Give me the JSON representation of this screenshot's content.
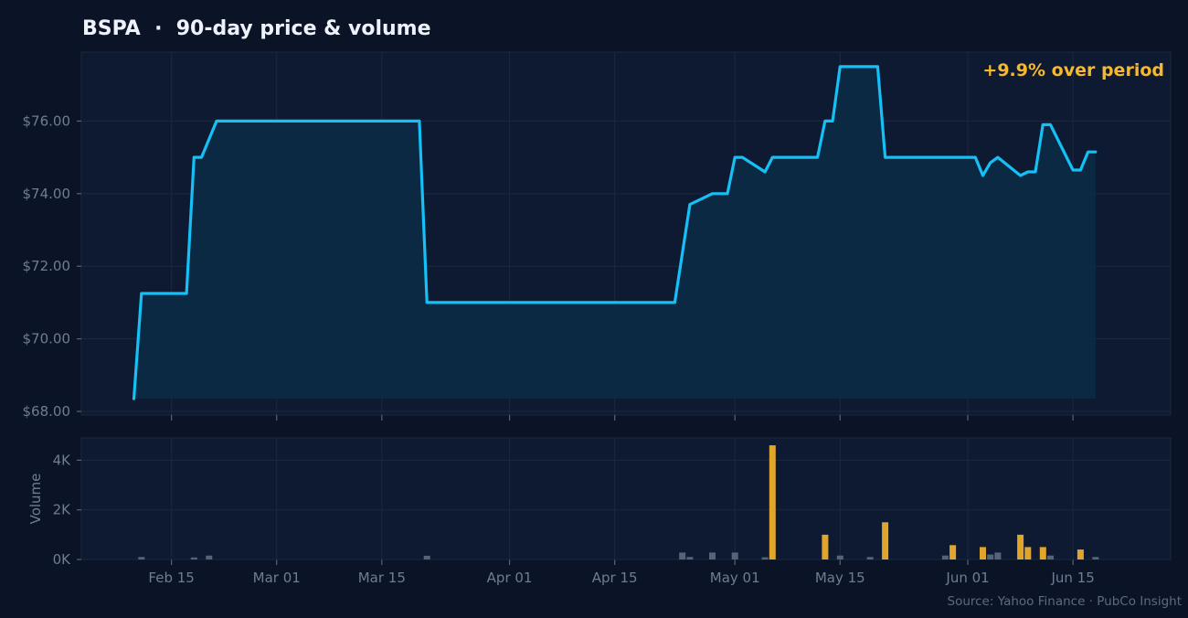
{
  "colors": {
    "background": "#0b1426",
    "panel": "#0e1a31",
    "grid": "#1b2940",
    "price_line": "#14c0f5",
    "price_fill": "#0c2a44",
    "volume_highlight": "#e0a52a",
    "volume_normal": "#56647a"
  },
  "chart_data": [
    {
      "type": "line",
      "title": "BSPA  ·  90-day price & volume",
      "annotation": "+9.9% over period",
      "source": "Source: Yahoo Finance · PubCo Insight",
      "x_ticks": [
        {
          "date": "2025-02-15",
          "label": "Feb 15"
        },
        {
          "date": "2025-03-01",
          "label": "Mar 01"
        },
        {
          "date": "2025-03-15",
          "label": "Mar 15"
        },
        {
          "date": "2025-04-01",
          "label": "Apr 01"
        },
        {
          "date": "2025-04-15",
          "label": "Apr 15"
        },
        {
          "date": "2025-05-01",
          "label": "May 01"
        },
        {
          "date": "2025-05-15",
          "label": "May 15"
        },
        {
          "date": "2025-06-01",
          "label": "Jun 01"
        },
        {
          "date": "2025-06-15",
          "label": "Jun 15"
        }
      ],
      "xlim": [
        "2025-02-03",
        "2025-06-28"
      ],
      "ylim": [
        67.9,
        77.9
      ],
      "y_ticks": [
        {
          "value": 68,
          "label": "$68.00"
        },
        {
          "value": 70,
          "label": "$70.00"
        },
        {
          "value": 72,
          "label": "$72.00"
        },
        {
          "value": 74,
          "label": "$74.00"
        },
        {
          "value": 76,
          "label": "$76.00"
        }
      ],
      "grid": true,
      "fill_under_line": true,
      "series": [
        {
          "points": [
            [
              "2025-02-10",
              68.35
            ],
            [
              "2025-02-11",
              71.25
            ],
            [
              "2025-02-17",
              71.25
            ],
            [
              "2025-02-18",
              75.0
            ],
            [
              "2025-02-19",
              75.0
            ],
            [
              "2025-02-21",
              76.0
            ],
            [
              "2025-03-20",
              76.0
            ],
            [
              "2025-03-21",
              71.0
            ],
            [
              "2025-04-23",
              71.0
            ],
            [
              "2025-04-25",
              73.7
            ],
            [
              "2025-04-28",
              74.0
            ],
            [
              "2025-04-30",
              74.0
            ],
            [
              "2025-05-01",
              75.0
            ],
            [
              "2025-05-02",
              75.0
            ],
            [
              "2025-05-05",
              74.6
            ],
            [
              "2025-05-06",
              75.0
            ],
            [
              "2025-05-12",
              75.0
            ],
            [
              "2025-05-13",
              76.0
            ],
            [
              "2025-05-14",
              76.0
            ],
            [
              "2025-05-15",
              77.5
            ],
            [
              "2025-05-20",
              77.5
            ],
            [
              "2025-05-21",
              75.0
            ],
            [
              "2025-06-02",
              75.0
            ],
            [
              "2025-06-03",
              74.5
            ],
            [
              "2025-06-04",
              74.85
            ],
            [
              "2025-06-05",
              75.0
            ],
            [
              "2025-06-08",
              74.5
            ],
            [
              "2025-06-09",
              74.6
            ],
            [
              "2025-06-10",
              74.6
            ],
            [
              "2025-06-11",
              75.9
            ],
            [
              "2025-06-12",
              75.9
            ],
            [
              "2025-06-15",
              74.65
            ],
            [
              "2025-06-16",
              74.65
            ],
            [
              "2025-06-17",
              75.15
            ],
            [
              "2025-06-18",
              75.15
            ]
          ]
        }
      ]
    },
    {
      "type": "bar",
      "ylabel": "Volume",
      "ylim": [
        0,
        4900
      ],
      "y_ticks": [
        {
          "value": 0,
          "label": "0K"
        },
        {
          "value": 2000,
          "label": "2K"
        },
        {
          "value": 4000,
          "label": "4K"
        }
      ],
      "grid": true,
      "bars": [
        {
          "date": "2025-02-11",
          "value": 100,
          "highlight": false
        },
        {
          "date": "2025-02-18",
          "value": 80,
          "highlight": false
        },
        {
          "date": "2025-02-20",
          "value": 160,
          "highlight": false
        },
        {
          "date": "2025-03-21",
          "value": 150,
          "highlight": false
        },
        {
          "date": "2025-04-24",
          "value": 280,
          "highlight": false
        },
        {
          "date": "2025-04-25",
          "value": 100,
          "highlight": false
        },
        {
          "date": "2025-04-28",
          "value": 280,
          "highlight": false
        },
        {
          "date": "2025-05-01",
          "value": 280,
          "highlight": false
        },
        {
          "date": "2025-05-05",
          "value": 90,
          "highlight": false
        },
        {
          "date": "2025-05-06",
          "value": 4600,
          "highlight": true
        },
        {
          "date": "2025-05-13",
          "value": 1000,
          "highlight": true
        },
        {
          "date": "2025-05-15",
          "value": 160,
          "highlight": false
        },
        {
          "date": "2025-05-19",
          "value": 100,
          "highlight": false
        },
        {
          "date": "2025-05-21",
          "value": 1500,
          "highlight": true
        },
        {
          "date": "2025-05-29",
          "value": 160,
          "highlight": false
        },
        {
          "date": "2025-05-30",
          "value": 580,
          "highlight": true
        },
        {
          "date": "2025-06-03",
          "value": 500,
          "highlight": true
        },
        {
          "date": "2025-06-04",
          "value": 200,
          "highlight": false
        },
        {
          "date": "2025-06-05",
          "value": 280,
          "highlight": false
        },
        {
          "date": "2025-06-08",
          "value": 1000,
          "highlight": true
        },
        {
          "date": "2025-06-09",
          "value": 500,
          "highlight": true
        },
        {
          "date": "2025-06-11",
          "value": 500,
          "highlight": true
        },
        {
          "date": "2025-06-12",
          "value": 160,
          "highlight": false
        },
        {
          "date": "2025-06-16",
          "value": 400,
          "highlight": true
        },
        {
          "date": "2025-06-18",
          "value": 100,
          "highlight": false
        }
      ]
    }
  ]
}
